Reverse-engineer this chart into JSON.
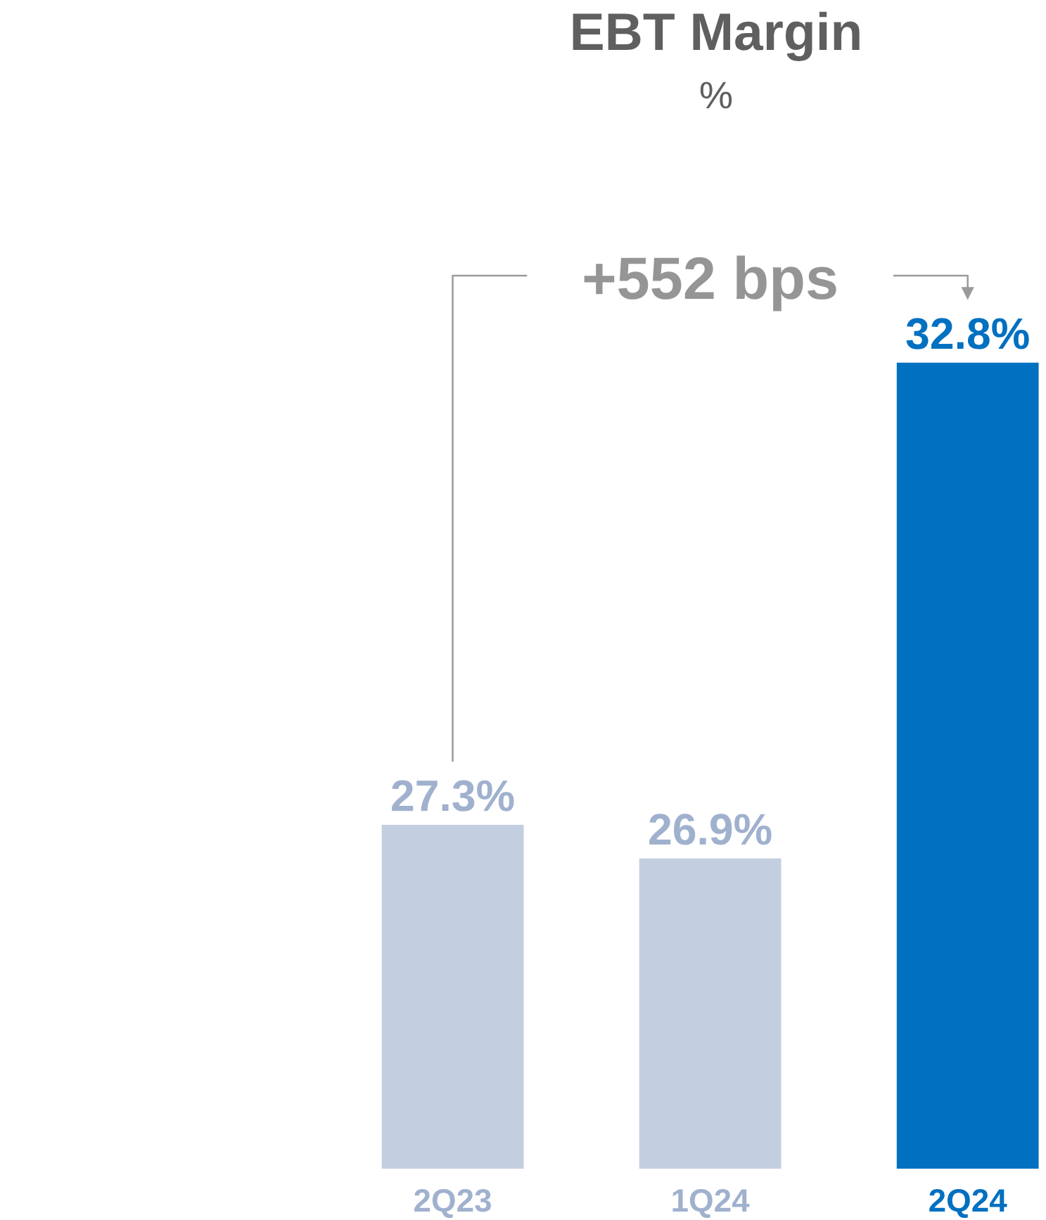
{
  "chart_data": {
    "type": "bar",
    "title": "EBT Margin",
    "subtitle": "%",
    "categories": [
      "2Q23",
      "1Q24",
      "2Q24"
    ],
    "values": [
      27.3,
      26.9,
      32.8
    ],
    "colors": [
      "#c3cee0",
      "#c3cee0",
      "#0070c0"
    ],
    "value_labels": [
      "27.3%",
      "26.9%",
      "32.8%"
    ],
    "tick_labels": "x",
    "annotations": [
      "+552 bps"
    ]
  }
}
